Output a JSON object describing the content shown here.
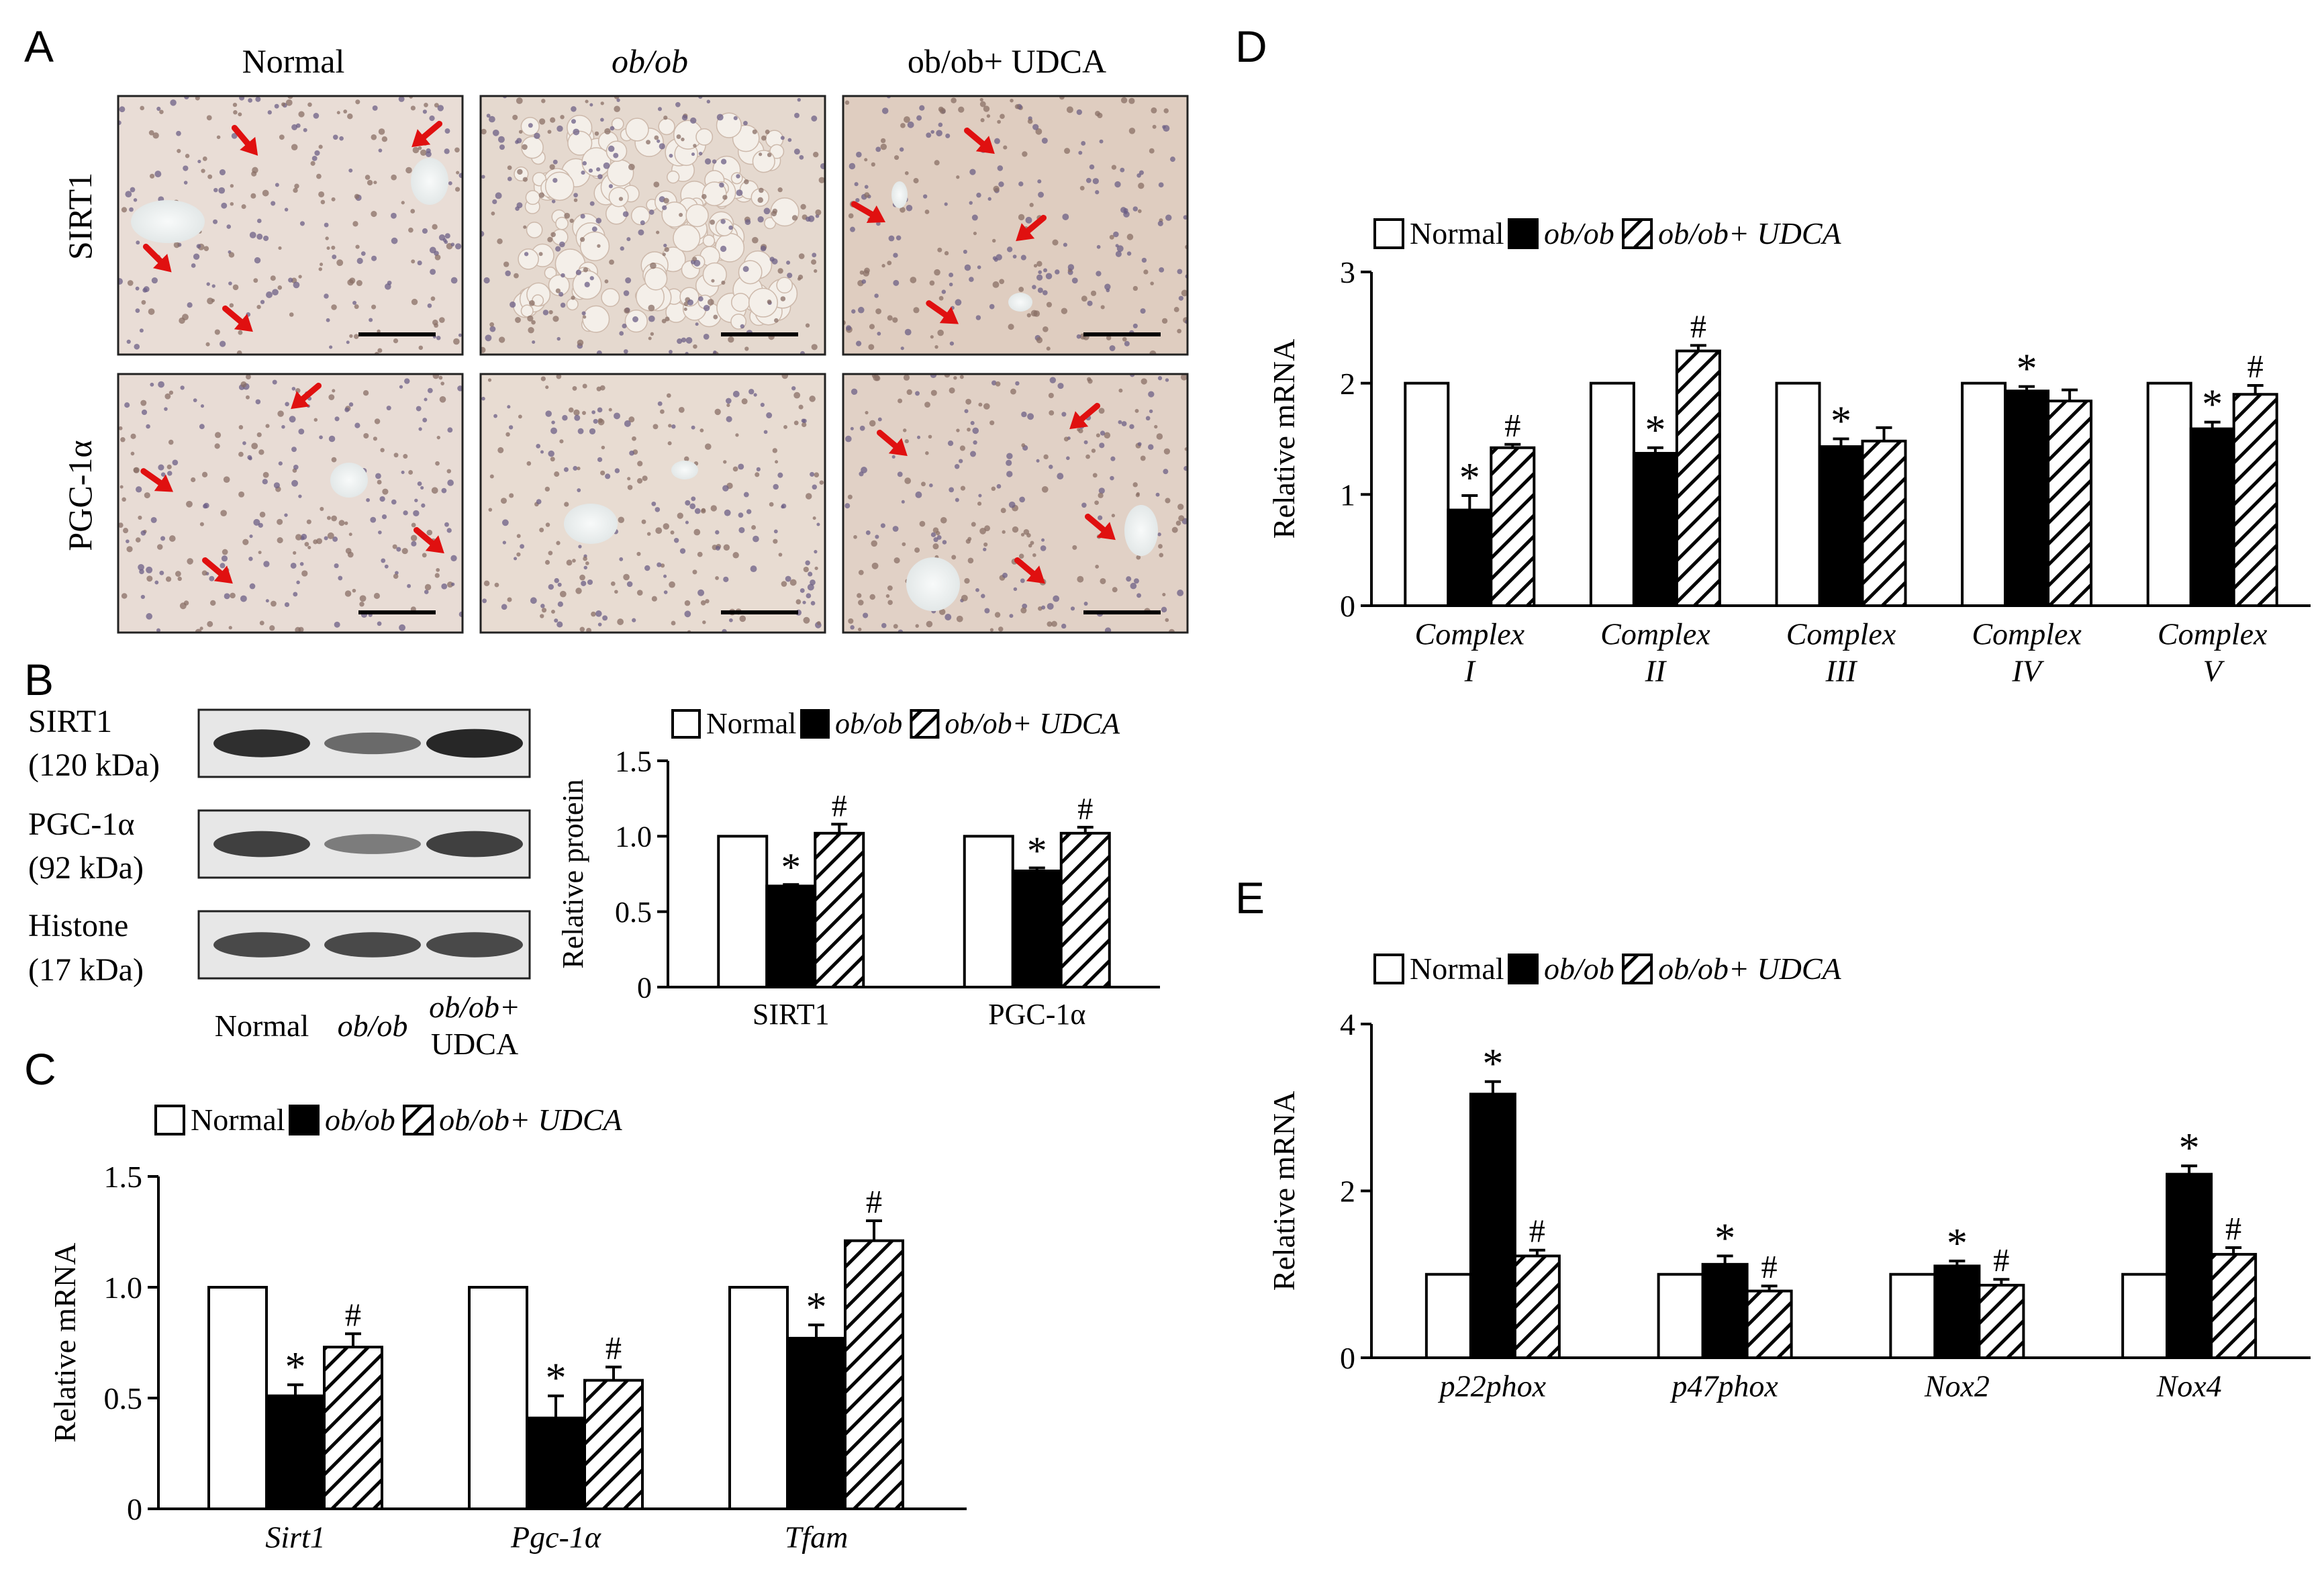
{
  "panel_letters": {
    "a": "A",
    "b": "B",
    "c": "C",
    "d": "D",
    "e": "E"
  },
  "legend": {
    "normal": "Normal",
    "obob": "ob/ob",
    "obob_udca": "ob/ob+ UDCA"
  },
  "panel_a": {
    "columns": [
      "Normal",
      "ob/ob",
      "ob/ob+ UDCA"
    ],
    "rows": [
      "SIRT1",
      "PGC-1α"
    ]
  },
  "panel_b_blot": {
    "bands": [
      {
        "name": "SIRT1",
        "size": "(120 kDa)",
        "intensity": [
          0.9,
          0.55,
          0.95
        ]
      },
      {
        "name": "PGC-1α",
        "size": "(92 kDa)",
        "intensity": [
          0.8,
          0.45,
          0.8
        ]
      },
      {
        "name": "Histone",
        "size": "(17 kDa)",
        "intensity": [
          0.75,
          0.75,
          0.75
        ]
      }
    ],
    "lanes": [
      "Normal",
      "ob/ob",
      "ob/ob+",
      "UDCA"
    ]
  },
  "colors": {
    "normal": "#ffffff",
    "obob": "#000000",
    "udca_hatch": "#000000",
    "arrow": "#e01010"
  },
  "chart_data": [
    {
      "id": "B",
      "type": "bar",
      "ylabel": "Relative protein",
      "ylim": [
        0,
        1.5
      ],
      "yticks": [
        "0",
        "0.5",
        "1.0",
        "1.5"
      ],
      "categories": [
        "SIRT1",
        "PGC-1α"
      ],
      "category_italic": false,
      "series": [
        {
          "name": "Normal",
          "values": [
            1.0,
            1.0
          ],
          "errors": [
            0,
            0
          ],
          "marks": [
            "",
            ""
          ]
        },
        {
          "name": "ob/ob",
          "values": [
            0.67,
            0.77
          ],
          "errors": [
            0.01,
            0.02
          ],
          "marks": [
            "*",
            "*"
          ]
        },
        {
          "name": "ob/ob+ UDCA",
          "values": [
            1.02,
            1.02
          ],
          "errors": [
            0.06,
            0.04
          ],
          "marks": [
            "#",
            "#"
          ]
        }
      ]
    },
    {
      "id": "C",
      "type": "bar",
      "ylabel": "Relative mRNA",
      "ylim": [
        0,
        1.5
      ],
      "yticks": [
        "0",
        "0.5",
        "1.0",
        "1.5"
      ],
      "categories": [
        "Sirt1",
        "Pgc-1α",
        "Tfam"
      ],
      "category_italic": true,
      "series": [
        {
          "name": "Normal",
          "values": [
            1.0,
            1.0,
            1.0
          ],
          "errors": [
            0,
            0,
            0
          ],
          "marks": [
            "",
            "",
            ""
          ]
        },
        {
          "name": "ob/ob",
          "values": [
            0.51,
            0.41,
            0.77
          ],
          "errors": [
            0.05,
            0.1,
            0.06
          ],
          "marks": [
            "*",
            "*",
            "*"
          ]
        },
        {
          "name": "ob/ob+ UDCA",
          "values": [
            0.73,
            0.58,
            1.21
          ],
          "errors": [
            0.06,
            0.06,
            0.09
          ],
          "marks": [
            "#",
            "#",
            "#"
          ]
        }
      ]
    },
    {
      "id": "D",
      "type": "bar",
      "ylabel": "Relative mRNA",
      "ylim": [
        0,
        3
      ],
      "yticks": [
        "0",
        "1",
        "2",
        "3"
      ],
      "categories": [
        [
          "Complex",
          "I"
        ],
        [
          "Complex",
          "II"
        ],
        [
          "Complex",
          "III"
        ],
        [
          "Complex",
          "IV"
        ],
        [
          "Complex",
          "V"
        ]
      ],
      "category_italic": true,
      "series": [
        {
          "name": "Normal",
          "values": [
            2.0,
            2.0,
            2.0,
            2.0,
            2.0
          ],
          "errors": [
            0,
            0,
            0,
            0,
            0
          ],
          "marks": [
            "",
            "",
            "",
            "",
            ""
          ]
        },
        {
          "name": "ob/ob",
          "values": [
            0.86,
            1.37,
            1.43,
            1.93,
            1.59
          ],
          "errors": [
            0.13,
            0.05,
            0.07,
            0.04,
            0.06
          ],
          "marks": [
            "*",
            "*",
            "*",
            "*",
            "*"
          ]
        },
        {
          "name": "ob/ob+ UDCA",
          "values": [
            1.42,
            2.29,
            1.48,
            1.84,
            1.9
          ],
          "errors": [
            0.03,
            0.05,
            0.12,
            0.1,
            0.08
          ],
          "marks": [
            "#",
            "#",
            "",
            "",
            "#"
          ]
        }
      ]
    },
    {
      "id": "E",
      "type": "bar",
      "ylabel": "Relative mRNA",
      "ylim": [
        0,
        4
      ],
      "yticks": [
        "0",
        "2",
        "4"
      ],
      "categories": [
        "p22phox",
        "p47phox",
        "Nox2",
        "Nox4"
      ],
      "category_italic": true,
      "series": [
        {
          "name": "Normal",
          "values": [
            1.0,
            1.0,
            1.0,
            1.0
          ],
          "errors": [
            0,
            0,
            0,
            0
          ],
          "marks": [
            "",
            "",
            "",
            ""
          ]
        },
        {
          "name": "ob/ob",
          "values": [
            3.16,
            1.12,
            1.1,
            2.2
          ],
          "errors": [
            0.15,
            0.1,
            0.06,
            0.1
          ],
          "marks": [
            "*",
            "*",
            "*",
            "*"
          ]
        },
        {
          "name": "ob/ob+ UDCA",
          "values": [
            1.22,
            0.8,
            0.87,
            1.24
          ],
          "errors": [
            0.07,
            0.06,
            0.07,
            0.08
          ],
          "marks": [
            "#",
            "#",
            "#",
            "#"
          ]
        }
      ]
    }
  ]
}
